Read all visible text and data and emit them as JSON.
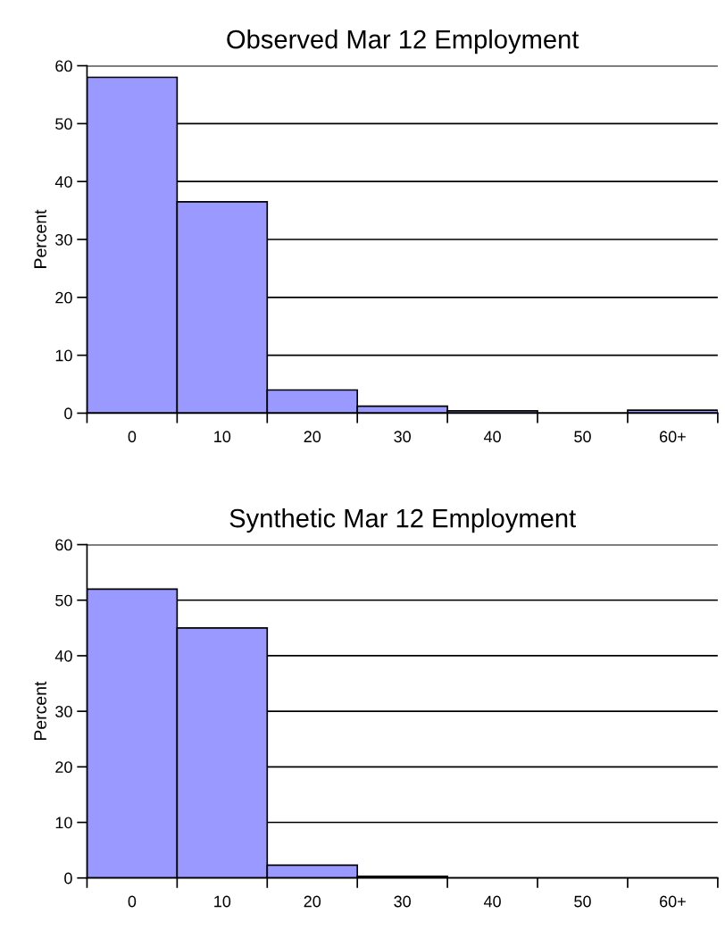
{
  "chart_data": [
    {
      "type": "bar",
      "title": "Observed Mar 12 Employment",
      "ylabel": "Percent",
      "categories": [
        "0",
        "10",
        "20",
        "30",
        "40",
        "50",
        "60+"
      ],
      "color": "#9999ff",
      "values": [
        58,
        36.5,
        4,
        1.2,
        0.4,
        0,
        0.5
      ],
      "ylim": [
        0,
        60
      ],
      "yticks": [
        0,
        10,
        20,
        30,
        40,
        50,
        60
      ],
      "grid": "y"
    },
    {
      "type": "bar",
      "title": "Synthetic Mar 12 Employment",
      "ylabel": "Percent",
      "categories": [
        "0",
        "10",
        "20",
        "30",
        "40",
        "50",
        "60+"
      ],
      "color": "#9999ff",
      "values": [
        52,
        45,
        2.3,
        0.3,
        0,
        0,
        0
      ],
      "ylim": [
        0,
        60
      ],
      "yticks": [
        0,
        10,
        20,
        30,
        40,
        50,
        60
      ],
      "grid": "y"
    }
  ]
}
